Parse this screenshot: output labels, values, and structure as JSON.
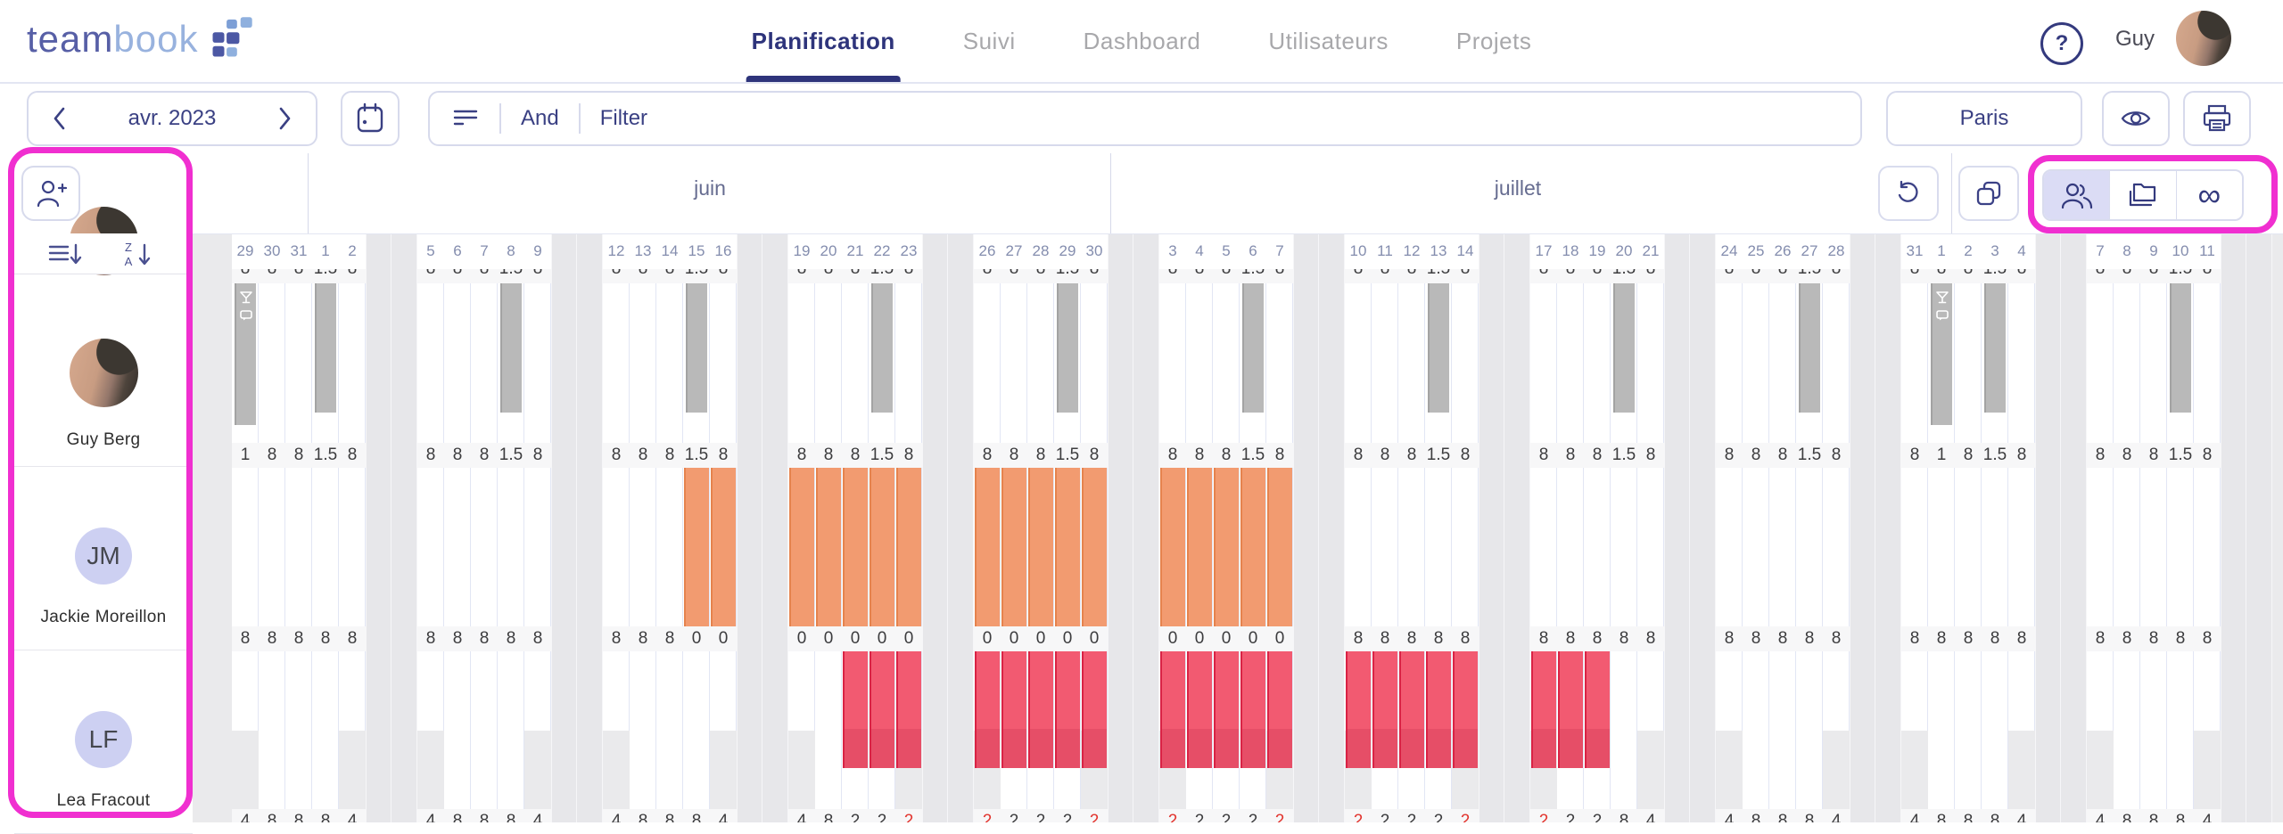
{
  "header": {
    "logo": {
      "part1": "team",
      "part2": "book"
    },
    "nav": [
      {
        "label": "Planification",
        "active": true
      },
      {
        "label": "Suivi",
        "active": false
      },
      {
        "label": "Dashboard",
        "active": false
      },
      {
        "label": "Utilisateurs",
        "active": false
      },
      {
        "label": "Projets",
        "active": false
      }
    ],
    "help_label": "?",
    "user_name": "Guy"
  },
  "toolbar": {
    "period": "avr. 2023",
    "and_label": "And",
    "filter_label": "Filter",
    "site_label": "Paris"
  },
  "view_toggle": {
    "options": [
      "people",
      "projects",
      "unlimited"
    ],
    "selected": "people",
    "infinity_glyph": "∞"
  },
  "months": [
    {
      "label": "juin"
    },
    {
      "label": "juillet"
    }
  ],
  "weeks": [
    {
      "days": [
        "29",
        "30",
        "31",
        "1",
        "2"
      ]
    },
    {
      "days": [
        "5",
        "6",
        "7",
        "8",
        "9"
      ]
    },
    {
      "days": [
        "12",
        "13",
        "14",
        "15",
        "16"
      ]
    },
    {
      "days": [
        "19",
        "20",
        "21",
        "22",
        "23"
      ]
    },
    {
      "days": [
        "26",
        "27",
        "28",
        "29",
        "30"
      ]
    },
    {
      "days": [
        "3",
        "4",
        "5",
        "6",
        "7"
      ]
    },
    {
      "days": [
        "10",
        "11",
        "12",
        "13",
        "14"
      ]
    },
    {
      "days": [
        "17",
        "18",
        "19",
        "20",
        "21"
      ]
    },
    {
      "days": [
        "24",
        "25",
        "26",
        "27",
        "28"
      ]
    },
    {
      "days": [
        "31",
        "1",
        "2",
        "3",
        "4"
      ]
    },
    {
      "days": [
        "7",
        "8",
        "9",
        "10",
        "11"
      ]
    }
  ],
  "partial_row_totals": [
    "8",
    "8",
    "8",
    "1.5",
    "8"
  ],
  "sidebar": {
    "users": [
      {
        "name": "Guy Berg",
        "avatar": "photo"
      },
      {
        "name": "Jackie Moreillon",
        "initials": "JM"
      },
      {
        "name": "Lea Fracout",
        "initials": "LF"
      }
    ]
  },
  "rows": [
    {
      "user": "Guy Berg",
      "bar_type": "gray",
      "capacity": [
        1,
        1,
        1,
        1,
        1
      ],
      "totals": [
        [
          "1",
          "8",
          "8",
          "1.5",
          "8"
        ],
        [
          "8",
          "8",
          "8",
          "1.5",
          "8"
        ],
        [
          "8",
          "8",
          "8",
          "1.5",
          "8"
        ],
        [
          "8",
          "8",
          "8",
          "1.5",
          "8"
        ],
        [
          "8",
          "8",
          "8",
          "1.5",
          "8"
        ],
        [
          "8",
          "8",
          "8",
          "1.5",
          "8"
        ],
        [
          "8",
          "8",
          "8",
          "1.5",
          "8"
        ],
        [
          "8",
          "8",
          "8",
          "1.5",
          "8"
        ],
        [
          "8",
          "8",
          "8",
          "1.5",
          "8"
        ],
        [
          "8",
          "1",
          "8",
          "1.5",
          "8"
        ],
        [
          "8",
          "8",
          "8",
          "1.5",
          "8"
        ]
      ],
      "alerts": [
        [],
        [],
        [],
        [],
        [],
        [],
        [],
        [],
        [],
        [],
        []
      ],
      "bars": [
        {
          "week": 0,
          "day": 0,
          "h": 0.89,
          "icons": true
        },
        {
          "week": 0,
          "day": 3,
          "h": 0.81
        },
        {
          "week": 1,
          "day": 3,
          "h": 0.81
        },
        {
          "week": 2,
          "day": 3,
          "h": 0.81
        },
        {
          "week": 3,
          "day": 3,
          "h": 0.81
        },
        {
          "week": 4,
          "day": 3,
          "h": 0.81
        },
        {
          "week": 5,
          "day": 3,
          "h": 0.81
        },
        {
          "week": 6,
          "day": 3,
          "h": 0.81
        },
        {
          "week": 7,
          "day": 3,
          "h": 0.81
        },
        {
          "week": 8,
          "day": 3,
          "h": 0.81
        },
        {
          "week": 9,
          "day": 1,
          "h": 0.89,
          "icons": true
        },
        {
          "week": 9,
          "day": 3,
          "h": 0.81
        },
        {
          "week": 10,
          "day": 3,
          "h": 0.81
        }
      ]
    },
    {
      "user": "Jackie Moreillon",
      "bar_type": "orange",
      "capacity": [
        1,
        1,
        1,
        1,
        1
      ],
      "totals": [
        [
          "8",
          "8",
          "8",
          "8",
          "8"
        ],
        [
          "8",
          "8",
          "8",
          "8",
          "8"
        ],
        [
          "8",
          "8",
          "8",
          "0",
          "0"
        ],
        [
          "0",
          "0",
          "0",
          "0",
          "0"
        ],
        [
          "0",
          "0",
          "0",
          "0",
          "0"
        ],
        [
          "0",
          "0",
          "0",
          "0",
          "0"
        ],
        [
          "8",
          "8",
          "8",
          "8",
          "8"
        ],
        [
          "8",
          "8",
          "8",
          "8",
          "8"
        ],
        [
          "8",
          "8",
          "8",
          "8",
          "8"
        ],
        [
          "8",
          "8",
          "8",
          "8",
          "8"
        ],
        [
          "8",
          "8",
          "8",
          "8",
          "8"
        ]
      ],
      "alerts": [
        [],
        [],
        [],
        [],
        [],
        [],
        [],
        [],
        [],
        [],
        []
      ],
      "bars": [
        {
          "week": 2,
          "day": 3,
          "h": 1
        },
        {
          "week": 2,
          "day": 4,
          "h": 1
        },
        {
          "week": 3,
          "day": 0,
          "h": 1
        },
        {
          "week": 3,
          "day": 1,
          "h": 1
        },
        {
          "week": 3,
          "day": 2,
          "h": 1
        },
        {
          "week": 3,
          "day": 3,
          "h": 1
        },
        {
          "week": 3,
          "day": 4,
          "h": 1
        },
        {
          "week": 4,
          "day": 0,
          "h": 1
        },
        {
          "week": 4,
          "day": 1,
          "h": 1
        },
        {
          "week": 4,
          "day": 2,
          "h": 1
        },
        {
          "week": 4,
          "day": 3,
          "h": 1
        },
        {
          "week": 4,
          "day": 4,
          "h": 1
        },
        {
          "week": 5,
          "day": 0,
          "h": 1
        },
        {
          "week": 5,
          "day": 1,
          "h": 1
        },
        {
          "week": 5,
          "day": 2,
          "h": 1
        },
        {
          "week": 5,
          "day": 3,
          "h": 1
        },
        {
          "week": 5,
          "day": 4,
          "h": 1
        }
      ]
    },
    {
      "user": "Lea Fracout",
      "bar_type": "red",
      "capacity": [
        0.5,
        1,
        1,
        1,
        0.5
      ],
      "totals": [
        [
          "4",
          "8",
          "8",
          "8",
          "4"
        ],
        [
          "4",
          "8",
          "8",
          "8",
          "4"
        ],
        [
          "4",
          "8",
          "8",
          "8",
          "4"
        ],
        [
          "4",
          "8",
          "2",
          "2",
          "2"
        ],
        [
          "2",
          "2",
          "2",
          "2",
          "2"
        ],
        [
          "2",
          "2",
          "2",
          "2",
          "2"
        ],
        [
          "2",
          "2",
          "2",
          "2",
          "2"
        ],
        [
          "2",
          "2",
          "2",
          "8",
          "4"
        ],
        [
          "4",
          "8",
          "8",
          "8",
          "4"
        ],
        [
          "4",
          "8",
          "8",
          "8",
          "4"
        ],
        [
          "4",
          "8",
          "8",
          "8",
          "4"
        ]
      ],
      "alerts": [
        [],
        [],
        [],
        [
          4
        ],
        [
          0,
          4
        ],
        [
          0,
          4
        ],
        [
          0,
          4
        ],
        [
          0
        ],
        [],
        [],
        []
      ],
      "bars": [
        {
          "week": 3,
          "day": 2,
          "h": 0.74,
          "overlap": true
        },
        {
          "week": 3,
          "day": 3,
          "h": 0.74,
          "overlap": true
        },
        {
          "week": 3,
          "day": 4,
          "h": 0.74,
          "overlap": true
        },
        {
          "week": 4,
          "day": 0,
          "h": 0.74,
          "overlap": true
        },
        {
          "week": 4,
          "day": 1,
          "h": 0.74,
          "overlap": true
        },
        {
          "week": 4,
          "day": 2,
          "h": 0.74,
          "overlap": true
        },
        {
          "week": 4,
          "day": 3,
          "h": 0.74,
          "overlap": true
        },
        {
          "week": 4,
          "day": 4,
          "h": 0.74,
          "overlap": true
        },
        {
          "week": 5,
          "day": 0,
          "h": 0.74,
          "overlap": true
        },
        {
          "week": 5,
          "day": 1,
          "h": 0.74,
          "overlap": true
        },
        {
          "week": 5,
          "day": 2,
          "h": 0.74,
          "overlap": true
        },
        {
          "week": 5,
          "day": 3,
          "h": 0.74,
          "overlap": true
        },
        {
          "week": 5,
          "day": 4,
          "h": 0.74,
          "overlap": true
        },
        {
          "week": 6,
          "day": 0,
          "h": 0.74,
          "overlap": true
        },
        {
          "week": 6,
          "day": 1,
          "h": 0.74,
          "overlap": true
        },
        {
          "week": 6,
          "day": 2,
          "h": 0.74,
          "overlap": true
        },
        {
          "week": 6,
          "day": 3,
          "h": 0.74,
          "overlap": true
        },
        {
          "week": 6,
          "day": 4,
          "h": 0.74,
          "overlap": true
        },
        {
          "week": 7,
          "day": 0,
          "h": 0.74,
          "overlap": true
        },
        {
          "week": 7,
          "day": 1,
          "h": 0.74,
          "overlap": true
        },
        {
          "week": 7,
          "day": 2,
          "h": 0.74,
          "overlap": true
        }
      ]
    }
  ],
  "colors": {
    "brand_navy": "#343a7e",
    "nav_inactive": "#a8a8ab",
    "border_lavender": "#d7daec",
    "segment_selected_bg": "#dbdcf5",
    "day_number": "#848dae",
    "month_label": "#666c90",
    "gray_bar": "#b9b9b9",
    "orange_bar": "#f29b70",
    "red_bar": "#f25a71",
    "alert_text": "#e2342e",
    "annotation_magenta": "#f02fd0",
    "grid_bg": "#eaeaec"
  }
}
